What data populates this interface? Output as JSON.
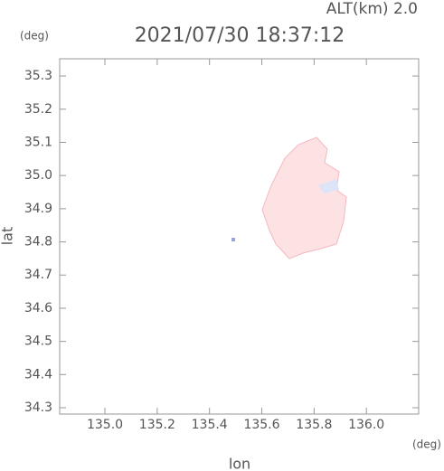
{
  "chart_data": {
    "type": "map",
    "title": "2021/07/30 18:37:12",
    "subtitle": "ALT(km) 2.0",
    "x_label": "lon",
    "y_label": "lat",
    "x_unit": "(deg)",
    "y_unit": "(deg)",
    "xlim": [
      134.827,
      136.2
    ],
    "ylim": [
      34.281,
      35.352
    ],
    "xticks": [
      {
        "value": 135,
        "label": "135.0"
      },
      135.2,
      135.4,
      135.6,
      135.8,
      {
        "value": 136,
        "label": "136.0"
      }
    ],
    "yticks": [
      34.3,
      34.4,
      34.5,
      34.6,
      34.7,
      34.8,
      34.9,
      {
        "value": 35,
        "label": "35.0"
      },
      35.1,
      35.2,
      35.3
    ]
  }
}
